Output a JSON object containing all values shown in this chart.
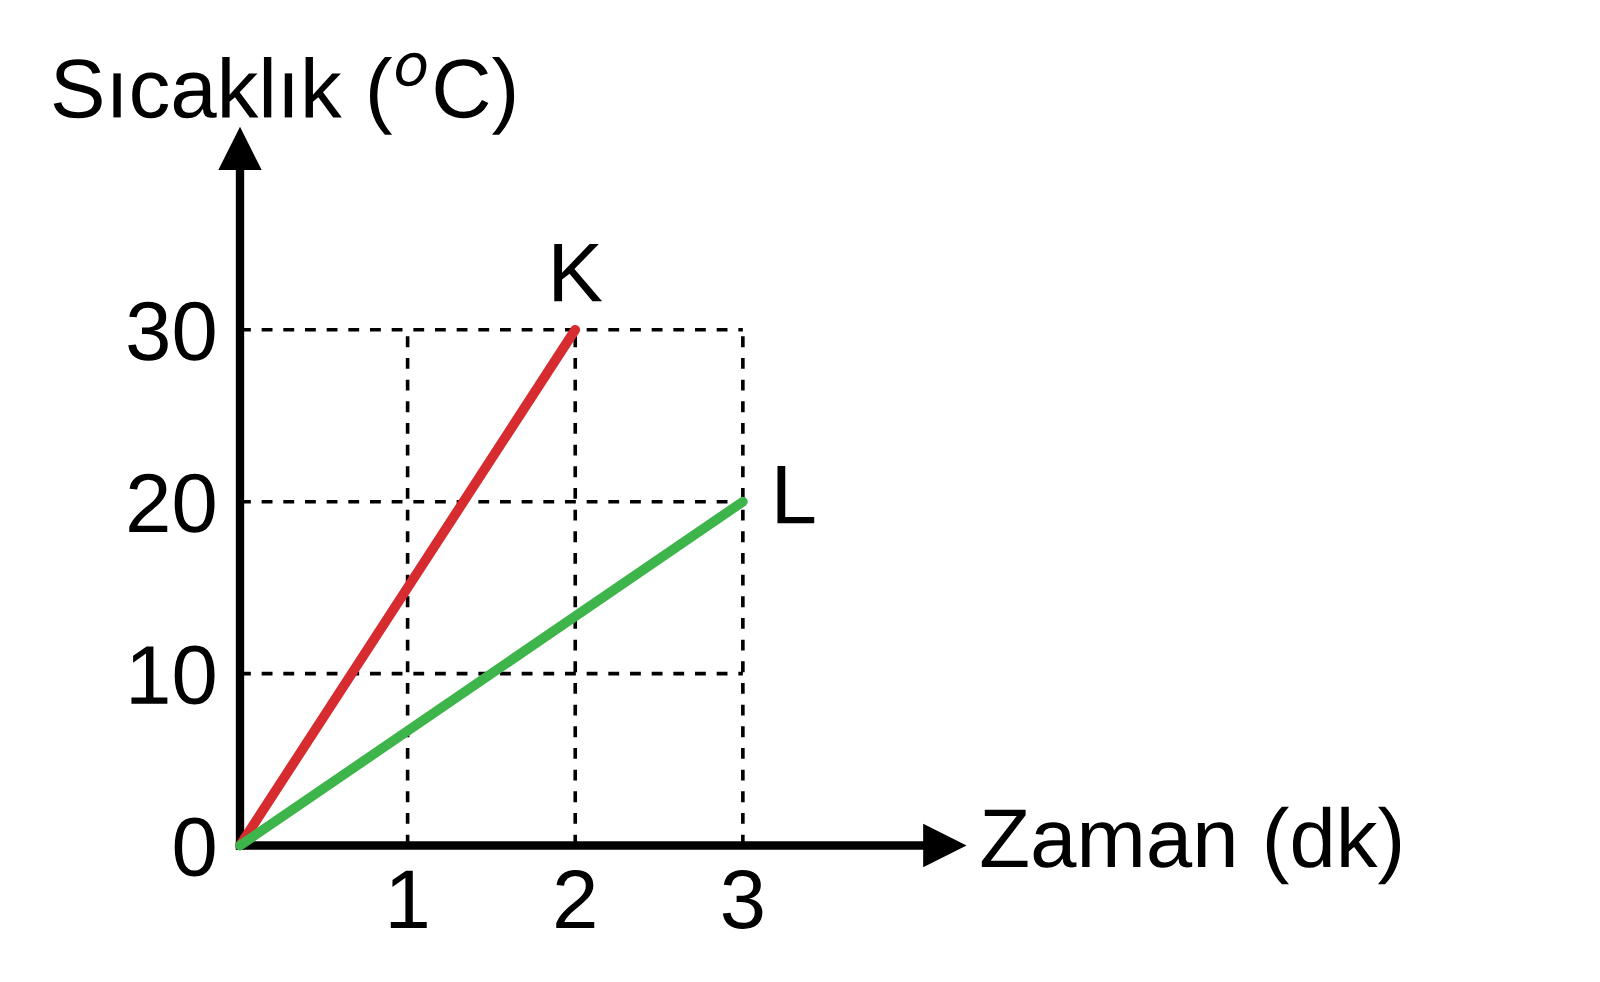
{
  "chart_data": {
    "type": "line",
    "xlabel": "Zaman (dk)",
    "ylabel": "Sıcaklık ($^{o}$C)",
    "series": [
      {
        "name": "K",
        "color": "#d62b2f",
        "x": [
          0,
          2
        ],
        "values": [
          0,
          30
        ]
      },
      {
        "name": "L",
        "color": "#3db54a",
        "x": [
          0,
          3
        ],
        "values": [
          0,
          20
        ]
      }
    ],
    "xlim": [
      0,
      4.2
    ],
    "ylim": [
      0,
      40.5
    ],
    "xticks": [
      1,
      2,
      3
    ],
    "yticks": [
      0,
      10,
      20,
      30
    ],
    "grid": true,
    "line_style": "solid",
    "marker": "none",
    "legend": false
  }
}
